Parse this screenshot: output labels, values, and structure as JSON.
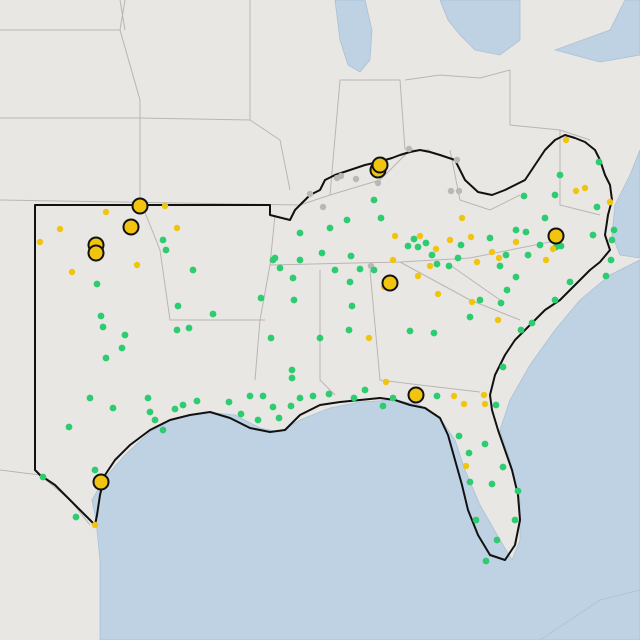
{
  "map": {
    "status_colors": {
      "ok": "#2ecc71",
      "warning": "#f1c40f",
      "inactive": "#b8b8b8",
      "alert_stroke": "#111111"
    },
    "background_color": "#e9e7e4",
    "water_color": "#bfd2e4"
  }
}
